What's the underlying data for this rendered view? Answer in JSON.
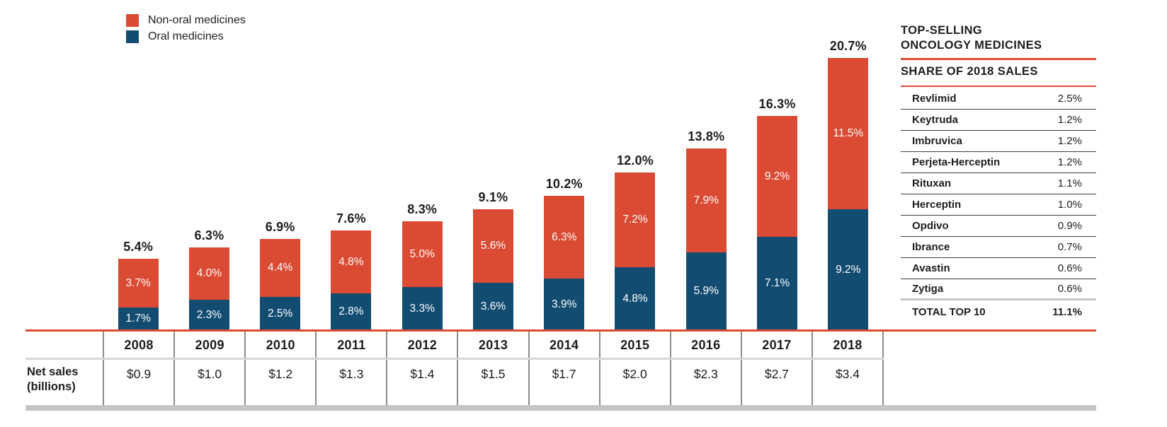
{
  "colors": {
    "red": "#DB4A33",
    "blue": "#134C71",
    "text": "#1D1D1B",
    "divider_dark": "#3D3D3D",
    "divider_vertical": "#8C8C8C",
    "divider_light": "#D8D8D8",
    "footer_bar": "#C5C5C5"
  },
  "legend": {
    "items": [
      {
        "label": "Non-oral medicines",
        "series": "nonoral"
      },
      {
        "label": "Oral medicines",
        "series": "oral"
      }
    ]
  },
  "chart_data": {
    "type": "bar",
    "stacked": true,
    "unit": "%",
    "title": "",
    "xlabel": "",
    "ylabel": "",
    "grid": false,
    "legend_position": "top-left",
    "ylim": [
      0,
      25.1
    ],
    "categories": [
      "2008",
      "2009",
      "2010",
      "2011",
      "2012",
      "2013",
      "2014",
      "2015",
      "2016",
      "2017",
      "2018"
    ],
    "series": [
      {
        "name": "Oral medicines",
        "color": "#134C71",
        "values": [
          1.7,
          2.3,
          2.5,
          2.8,
          3.3,
          3.6,
          3.9,
          4.8,
          5.9,
          7.1,
          9.2
        ]
      },
      {
        "name": "Non-oral medicines",
        "color": "#DB4A33",
        "values": [
          3.7,
          4.0,
          4.4,
          4.8,
          5.0,
          5.6,
          6.3,
          7.2,
          7.9,
          9.2,
          11.5
        ]
      }
    ],
    "totals": [
      5.4,
      6.3,
      6.9,
      7.6,
      8.3,
      9.1,
      10.2,
      12.0,
      13.8,
      16.3,
      20.7
    ],
    "net_sales": {
      "label_line1": "Net sales",
      "label_line2": "(billions)",
      "values": [
        "$0.9",
        "$1.0",
        "$1.2",
        "$1.3",
        "$1.4",
        "$1.5",
        "$1.7",
        "$2.0",
        "$2.3",
        "$2.7",
        "$3.4"
      ]
    }
  },
  "side_table": {
    "title_line1": "TOP-SELLING",
    "title_line2": "ONCOLOGY MEDICINES",
    "subtitle": "SHARE OF 2018 SALES",
    "rows": [
      {
        "name": "Revlimid",
        "share": "2.5%"
      },
      {
        "name": "Keytruda",
        "share": "1.2%"
      },
      {
        "name": "Imbruvica",
        "share": "1.2%"
      },
      {
        "name": "Perjeta-Herceptin",
        "share": "1.2%"
      },
      {
        "name": "Rituxan",
        "share": "1.1%"
      },
      {
        "name": "Herceptin",
        "share": "1.0%"
      },
      {
        "name": "Opdivo",
        "share": "0.9%"
      },
      {
        "name": "Ibrance",
        "share": "0.7%"
      },
      {
        "name": "Avastin",
        "share": "0.6%"
      },
      {
        "name": "Zytiga",
        "share": "0.6%"
      }
    ],
    "total_label": "TOTAL TOP 10",
    "total_value": "11.1%"
  }
}
